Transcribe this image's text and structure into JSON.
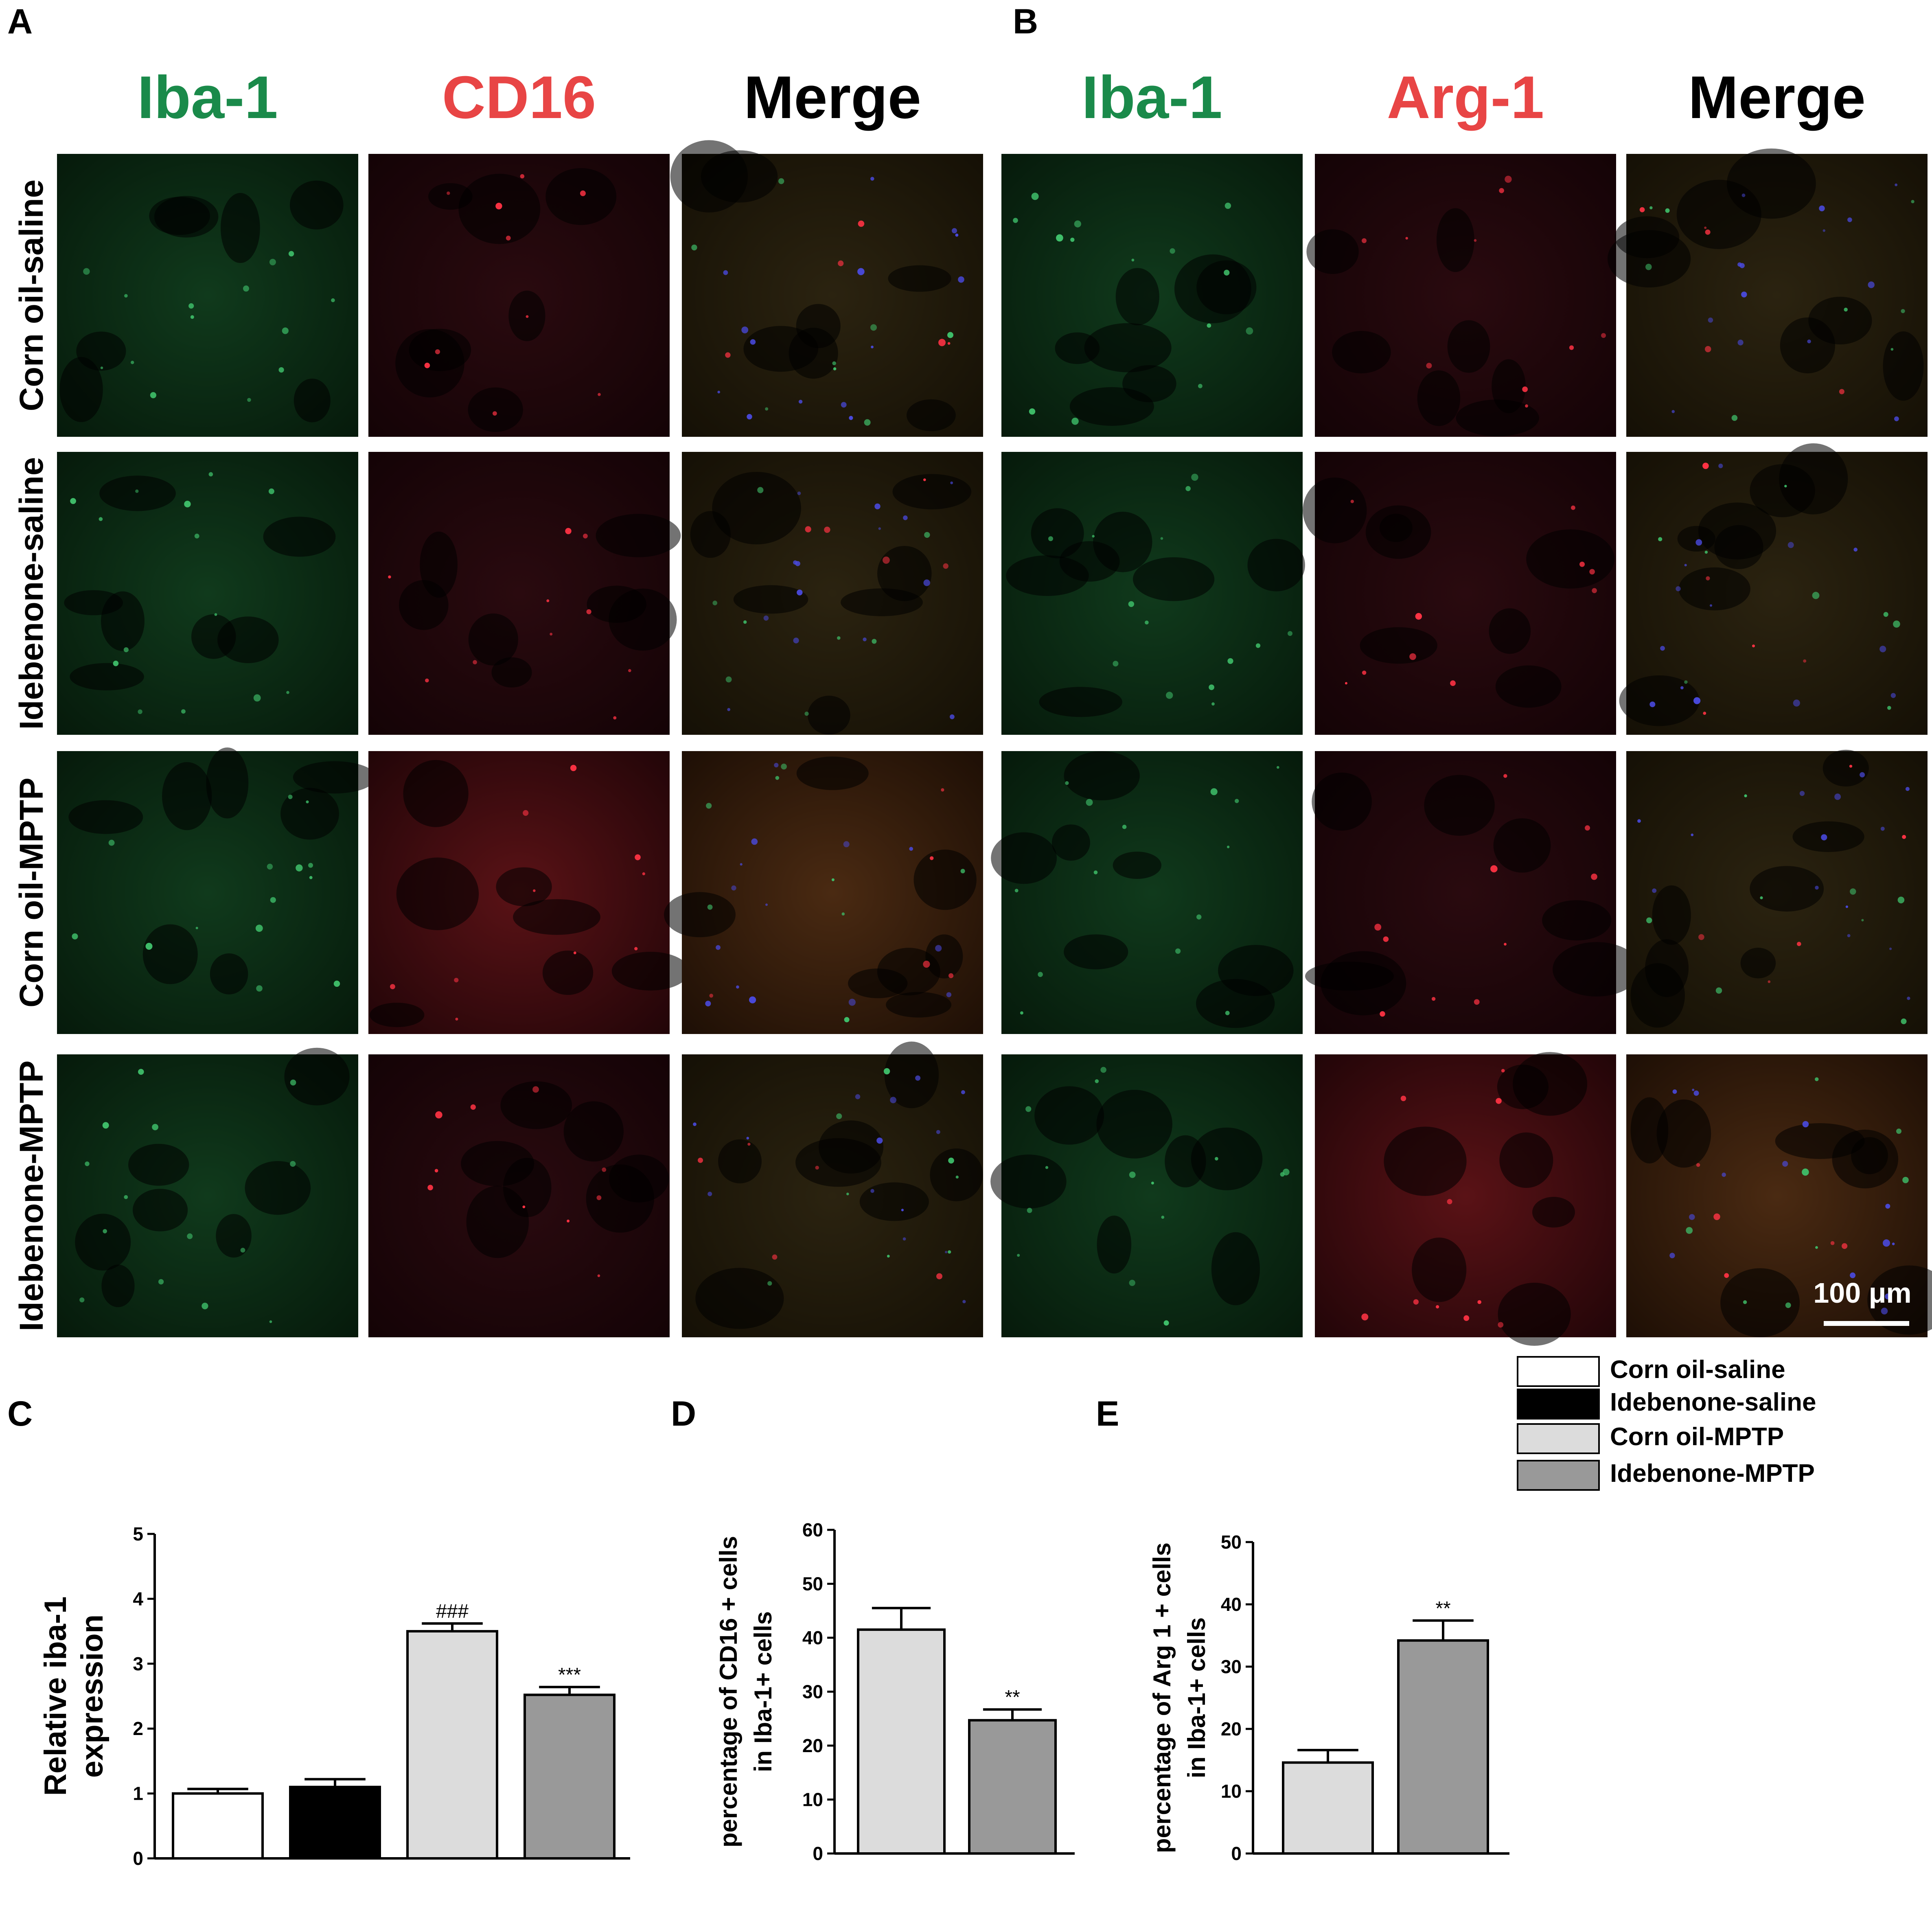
{
  "panel_letters": {
    "a": "A",
    "b": "B",
    "c": "C",
    "d": "D",
    "e": "E"
  },
  "micrographs": {
    "columns_A": [
      {
        "label": "Iba-1",
        "color": "#1a8a4a"
      },
      {
        "label": "CD16",
        "color": "#e84545"
      },
      {
        "label": "Merge",
        "color": "#000000"
      }
    ],
    "columns_B": [
      {
        "label": "Iba-1",
        "color": "#1a8a4a"
      },
      {
        "label": "Arg-1",
        "color": "#e84545"
      },
      {
        "label": "Merge",
        "color": "#000000"
      }
    ],
    "rows": [
      "Corn oil-saline",
      "Idebenone-saline",
      "Corn oil-MPTP",
      "Idebenone-MPTP"
    ],
    "scale_bar": "100 μm"
  },
  "legend": [
    {
      "label": "Corn oil-saline",
      "fill": "#ffffff"
    },
    {
      "label": "Idebenone-saline",
      "fill": "#000000"
    },
    {
      "label": "Corn oil-MPTP",
      "fill": "#dcdcdc"
    },
    {
      "label": "Idebenone-MPTP",
      "fill": "#999999"
    }
  ],
  "chart_data": [
    {
      "panel": "C",
      "type": "bar",
      "categories": [
        "Corn oil-saline",
        "Idebenone-saline",
        "Corn oil-MPTP",
        "Idebenone-MPTP"
      ],
      "values": [
        1.0,
        1.1,
        3.5,
        2.52
      ],
      "errors": [
        0.07,
        0.12,
        0.12,
        0.12
      ],
      "annotations": [
        "",
        "",
        "###",
        "***"
      ],
      "ylabel": [
        "Relative iba-1",
        "expression"
      ],
      "ylim": [
        0,
        5
      ],
      "yticks": [
        0,
        1,
        2,
        3,
        4,
        5
      ],
      "colors": [
        "#ffffff",
        "#000000",
        "#dcdcdc",
        "#999999"
      ]
    },
    {
      "panel": "D",
      "type": "bar",
      "categories": [
        "Corn oil-MPTP",
        "Idebenone-MPTP"
      ],
      "values": [
        41.5,
        24.7
      ],
      "errors": [
        4.0,
        2.0
      ],
      "annotations": [
        "",
        "**"
      ],
      "ylabel": [
        "percentage of CD16 + cells",
        "in Iba-1+ cells"
      ],
      "ylim": [
        0,
        60
      ],
      "yticks": [
        0,
        10,
        20,
        30,
        40,
        50,
        60
      ],
      "colors": [
        "#dcdcdc",
        "#999999"
      ]
    },
    {
      "panel": "E",
      "type": "bar",
      "categories": [
        "Corn oil-MPTP",
        "Idebenone-MPTP"
      ],
      "values": [
        14.6,
        34.2
      ],
      "errors": [
        2.0,
        3.2
      ],
      "annotations": [
        "",
        "**"
      ],
      "ylabel": [
        "percentage of Arg 1 + cells",
        "in Iba-1+ cells"
      ],
      "ylim": [
        0,
        50
      ],
      "yticks": [
        0,
        10,
        20,
        30,
        40,
        50
      ],
      "colors": [
        "#dcdcdc",
        "#999999"
      ]
    }
  ]
}
